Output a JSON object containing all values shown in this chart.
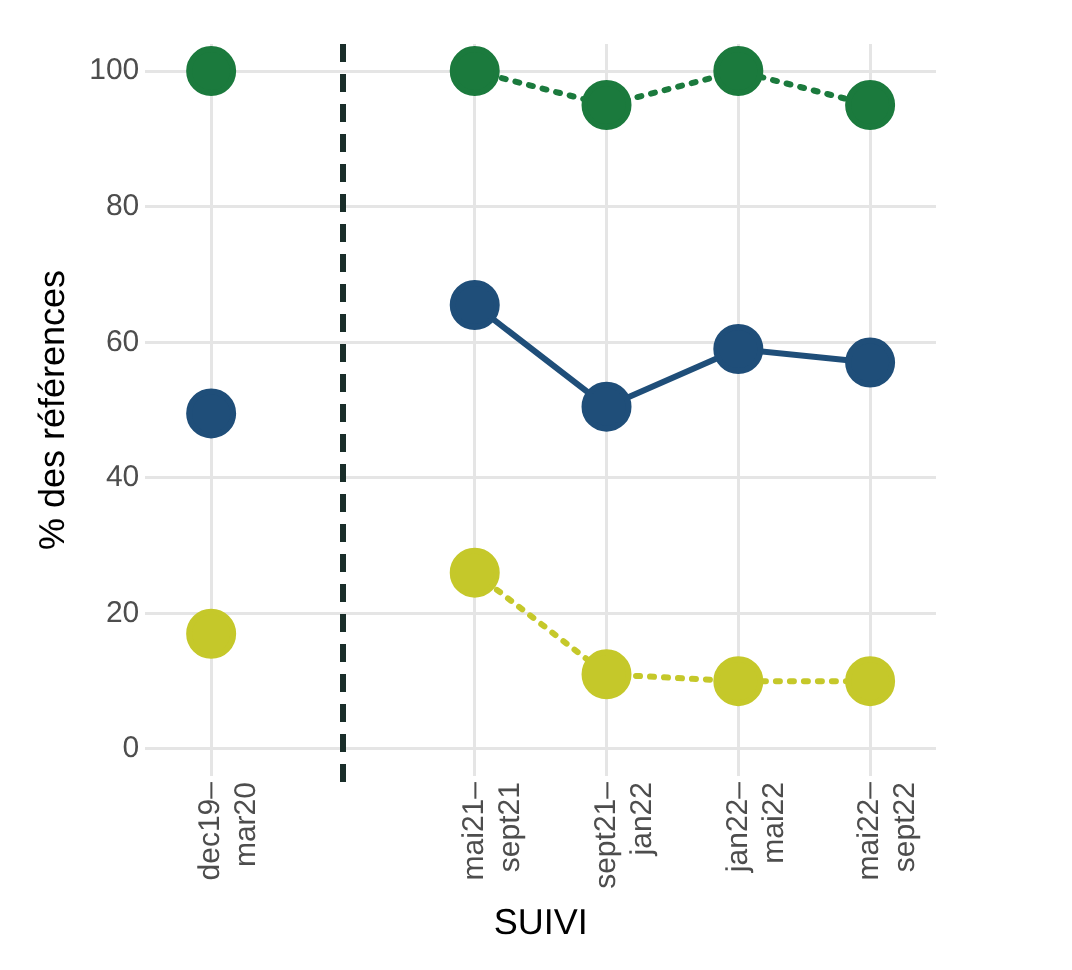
{
  "chart_data": {
    "type": "line",
    "xlabel": "SUIVI",
    "ylabel": "% des références",
    "categories": [
      "dec19–mar20",
      null,
      "mai21–sept21",
      "sept21–jan22",
      "jan22–mai22",
      "mai22–sept22"
    ],
    "ylim": [
      -4,
      104
    ],
    "yticks": [
      0,
      20,
      40,
      60,
      80,
      100
    ],
    "series": [
      {
        "color": "#1b7a3d",
        "values": [
          100,
          null,
          100,
          95,
          100,
          95
        ],
        "line_style": "dotted"
      },
      {
        "color": "#1f4e79",
        "values": [
          49.5,
          null,
          65.5,
          50.5,
          59,
          57
        ],
        "line_style": "solid"
      },
      {
        "color": "#c5c82a",
        "values": [
          17,
          null,
          26,
          11,
          10,
          10
        ],
        "line_style": "dotted"
      }
    ],
    "marker": "circle",
    "grid": true,
    "legend": false
  }
}
